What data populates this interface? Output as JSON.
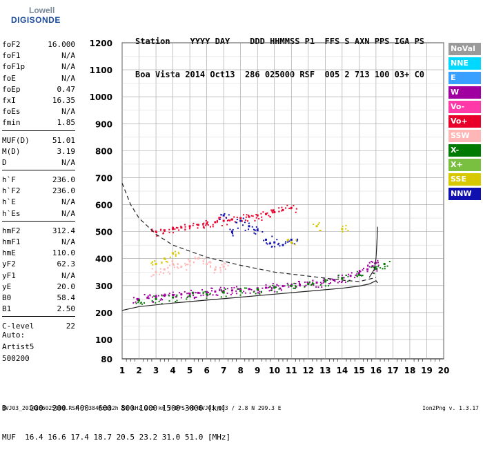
{
  "logo": {
    "line1": "Lowell",
    "line2": "DIGISONDE"
  },
  "header": {
    "line1": "Station    YYYY DAY    DDD HHMMSS P1  FFS S AXN PPS IGA PS",
    "line2": "Boa Vista 2014 Oct13  286 025000 RSF  005 2 713 100 03+ C0"
  },
  "params": [
    {
      "name": "foF2",
      "value": "16.000"
    },
    {
      "name": "foF1",
      "value": "N/A"
    },
    {
      "name": "foF1p",
      "value": "N/A"
    },
    {
      "name": "foE",
      "value": "N/A"
    },
    {
      "name": "foEp",
      "value": "0.47"
    },
    {
      "name": "fxI",
      "value": "16.35"
    },
    {
      "name": "foEs",
      "value": "N/A"
    },
    {
      "name": "fmin",
      "value": "1.85"
    },
    {
      "sep": true
    },
    {
      "name": "MUF(D)",
      "value": "51.01"
    },
    {
      "name": "M(D)",
      "value": "3.19"
    },
    {
      "name": "D",
      "value": "N/A"
    },
    {
      "sep": true
    },
    {
      "name": "h`F",
      "value": "236.0"
    },
    {
      "name": "h`F2",
      "value": "236.0"
    },
    {
      "name": "h`E",
      "value": "N/A"
    },
    {
      "name": "h`Es",
      "value": "N/A"
    },
    {
      "sep": true
    },
    {
      "name": "hmF2",
      "value": "312.4"
    },
    {
      "name": "hmF1",
      "value": "N/A"
    },
    {
      "name": "hmE",
      "value": "110.0"
    },
    {
      "name": "yF2",
      "value": "62.3"
    },
    {
      "name": "yF1",
      "value": "N/A"
    },
    {
      "name": "yE",
      "value": "20.0"
    },
    {
      "name": "B0",
      "value": "58.4"
    },
    {
      "name": "B1",
      "value": "2.50"
    },
    {
      "sep": true
    },
    {
      "name": "C-level",
      "value": "22"
    }
  ],
  "auto": {
    "line1": "Auto:",
    "line2": "Artist5",
    "line3": "500200"
  },
  "legend": [
    {
      "label": "NoVal",
      "color": "#9a9a9a"
    },
    {
      "label": "NNE",
      "color": "#00d8ff"
    },
    {
      "label": "E",
      "color": "#3aa0ff"
    },
    {
      "label": "W",
      "color": "#a000a0"
    },
    {
      "label": "Vo-",
      "color": "#ff3aa8"
    },
    {
      "label": "Vo+",
      "color": "#e8002a"
    },
    {
      "label": "SSW",
      "color": "#ffb6b6"
    },
    {
      "label": "X-",
      "color": "#007a00"
    },
    {
      "label": "X+",
      "color": "#7ac040"
    },
    {
      "label": "SSE",
      "color": "#d8c800"
    },
    {
      "label": "NNW",
      "color": "#1010b0"
    }
  ],
  "distances": {
    "line1": "D     100  200  400  600  800 1000 1500 3000 [km]",
    "line2": "MUF  16.4 16.6 17.4 18.7 20.5 23.2 31.0 51.0 [MHz]"
  },
  "footer": {
    "left": "BVJ03_2014286025000.RSF / 384fx512h 50 kHz 2.5 km / DPS-4D BVJ03 003 / 2.8 N 299.3 E",
    "right": "Ion2Png v. 1.3.17"
  },
  "chart_data": {
    "type": "scatter",
    "title": "",
    "xlabel": "",
    "ylabel": "",
    "xlim": [
      1,
      20
    ],
    "ylim": [
      80,
      1200
    ],
    "grid": true,
    "x_ticks": [
      1,
      2,
      3,
      4,
      5,
      6,
      7,
      8,
      9,
      10,
      11,
      12,
      13,
      14,
      15,
      16,
      17,
      18,
      19,
      20
    ],
    "y_ticks": [
      80,
      100,
      200,
      300,
      400,
      500,
      600,
      700,
      800,
      900,
      1000,
      1100,
      1200
    ],
    "series": [
      {
        "name": "W",
        "color": "#a000a0",
        "x": [
          1.9,
          2.5,
          3.0,
          3.5,
          4.0,
          4.5,
          5.0,
          5.5,
          6.0,
          6.5,
          7.0,
          7.5,
          8.0,
          8.5,
          9.0,
          9.5,
          10.0,
          10.5,
          11.0,
          11.5,
          12.0,
          12.5,
          13.0,
          13.5,
          14.0,
          14.5,
          15.0,
          15.5,
          15.8,
          16.0
        ],
        "y": [
          250,
          255,
          258,
          262,
          265,
          268,
          270,
          273,
          276,
          278,
          280,
          282,
          285,
          287,
          290,
          292,
          295,
          298,
          300,
          303,
          307,
          311,
          316,
          321,
          328,
          336,
          346,
          360,
          372,
          384
        ]
      },
      {
        "name": "Vo+",
        "color": "#e8002a",
        "x": [
          3.0,
          3.5,
          4.0,
          4.5,
          5.0,
          5.5,
          6.0,
          6.5,
          7.0,
          7.5,
          8.0,
          8.5,
          9.0,
          9.5,
          10.0,
          10.5,
          11.0
        ],
        "y": [
          500,
          505,
          510,
          515,
          520,
          525,
          530,
          535,
          540,
          545,
          550,
          555,
          560,
          565,
          572,
          580,
          588
        ]
      },
      {
        "name": "X-",
        "color": "#007a00",
        "x": [
          2.0,
          3.0,
          4.0,
          5.0,
          6.0,
          7.0,
          8.0,
          9.0,
          10.0,
          11.0,
          12.0,
          13.0,
          14.0,
          15.0,
          16.0,
          16.5
        ],
        "y": [
          245,
          250,
          256,
          262,
          268,
          274,
          280,
          286,
          292,
          299,
          306,
          315,
          326,
          340,
          362,
          380
        ]
      },
      {
        "name": "NNW",
        "color": "#1010b0",
        "x": [
          7.0,
          7.5,
          8.0,
          8.5,
          9.0,
          9.5,
          10.0,
          10.5,
          11.0
        ],
        "y": [
          560,
          500,
          540,
          520,
          505,
          470,
          460,
          450,
          470
        ]
      },
      {
        "name": "SSW",
        "color": "#ffb6b6",
        "x": [
          3.0,
          3.5,
          4.0,
          4.5,
          5.0,
          5.5,
          6.0,
          6.5,
          7.0
        ],
        "y": [
          350,
          360,
          380,
          370,
          390,
          400,
          380,
          360,
          370
        ]
      },
      {
        "name": "SSE",
        "color": "#d8c800",
        "x": [
          3.0,
          3.5,
          4.0,
          11.0,
          12.5,
          14.0
        ],
        "y": [
          380,
          400,
          420,
          460,
          520,
          510
        ]
      }
    ],
    "curves": [
      {
        "name": "profile",
        "style": "solid",
        "x": [
          1.0,
          2.0,
          4.0,
          6.0,
          8.0,
          10.0,
          12.0,
          14.0,
          15.0,
          15.6,
          16.0,
          16.1
        ],
        "y": [
          208,
          222,
          235,
          246,
          257,
          268,
          279,
          290,
          298,
          306,
          318,
          310
        ]
      },
      {
        "name": "profile-upper",
        "style": "solid",
        "x": [
          15.6,
          15.9,
          16.0,
          16.05,
          16.1
        ],
        "y": [
          330,
          360,
          400,
          450,
          518
        ]
      },
      {
        "name": "model",
        "style": "dashed",
        "x": [
          1.0,
          1.5,
          2.0,
          3.0,
          4.0,
          6.0,
          8.0,
          10.0,
          12.0,
          14.0,
          15.0,
          16.0
        ],
        "y": [
          680,
          600,
          550,
          490,
          450,
          405,
          375,
          350,
          335,
          320,
          315,
          330
        ]
      }
    ]
  }
}
